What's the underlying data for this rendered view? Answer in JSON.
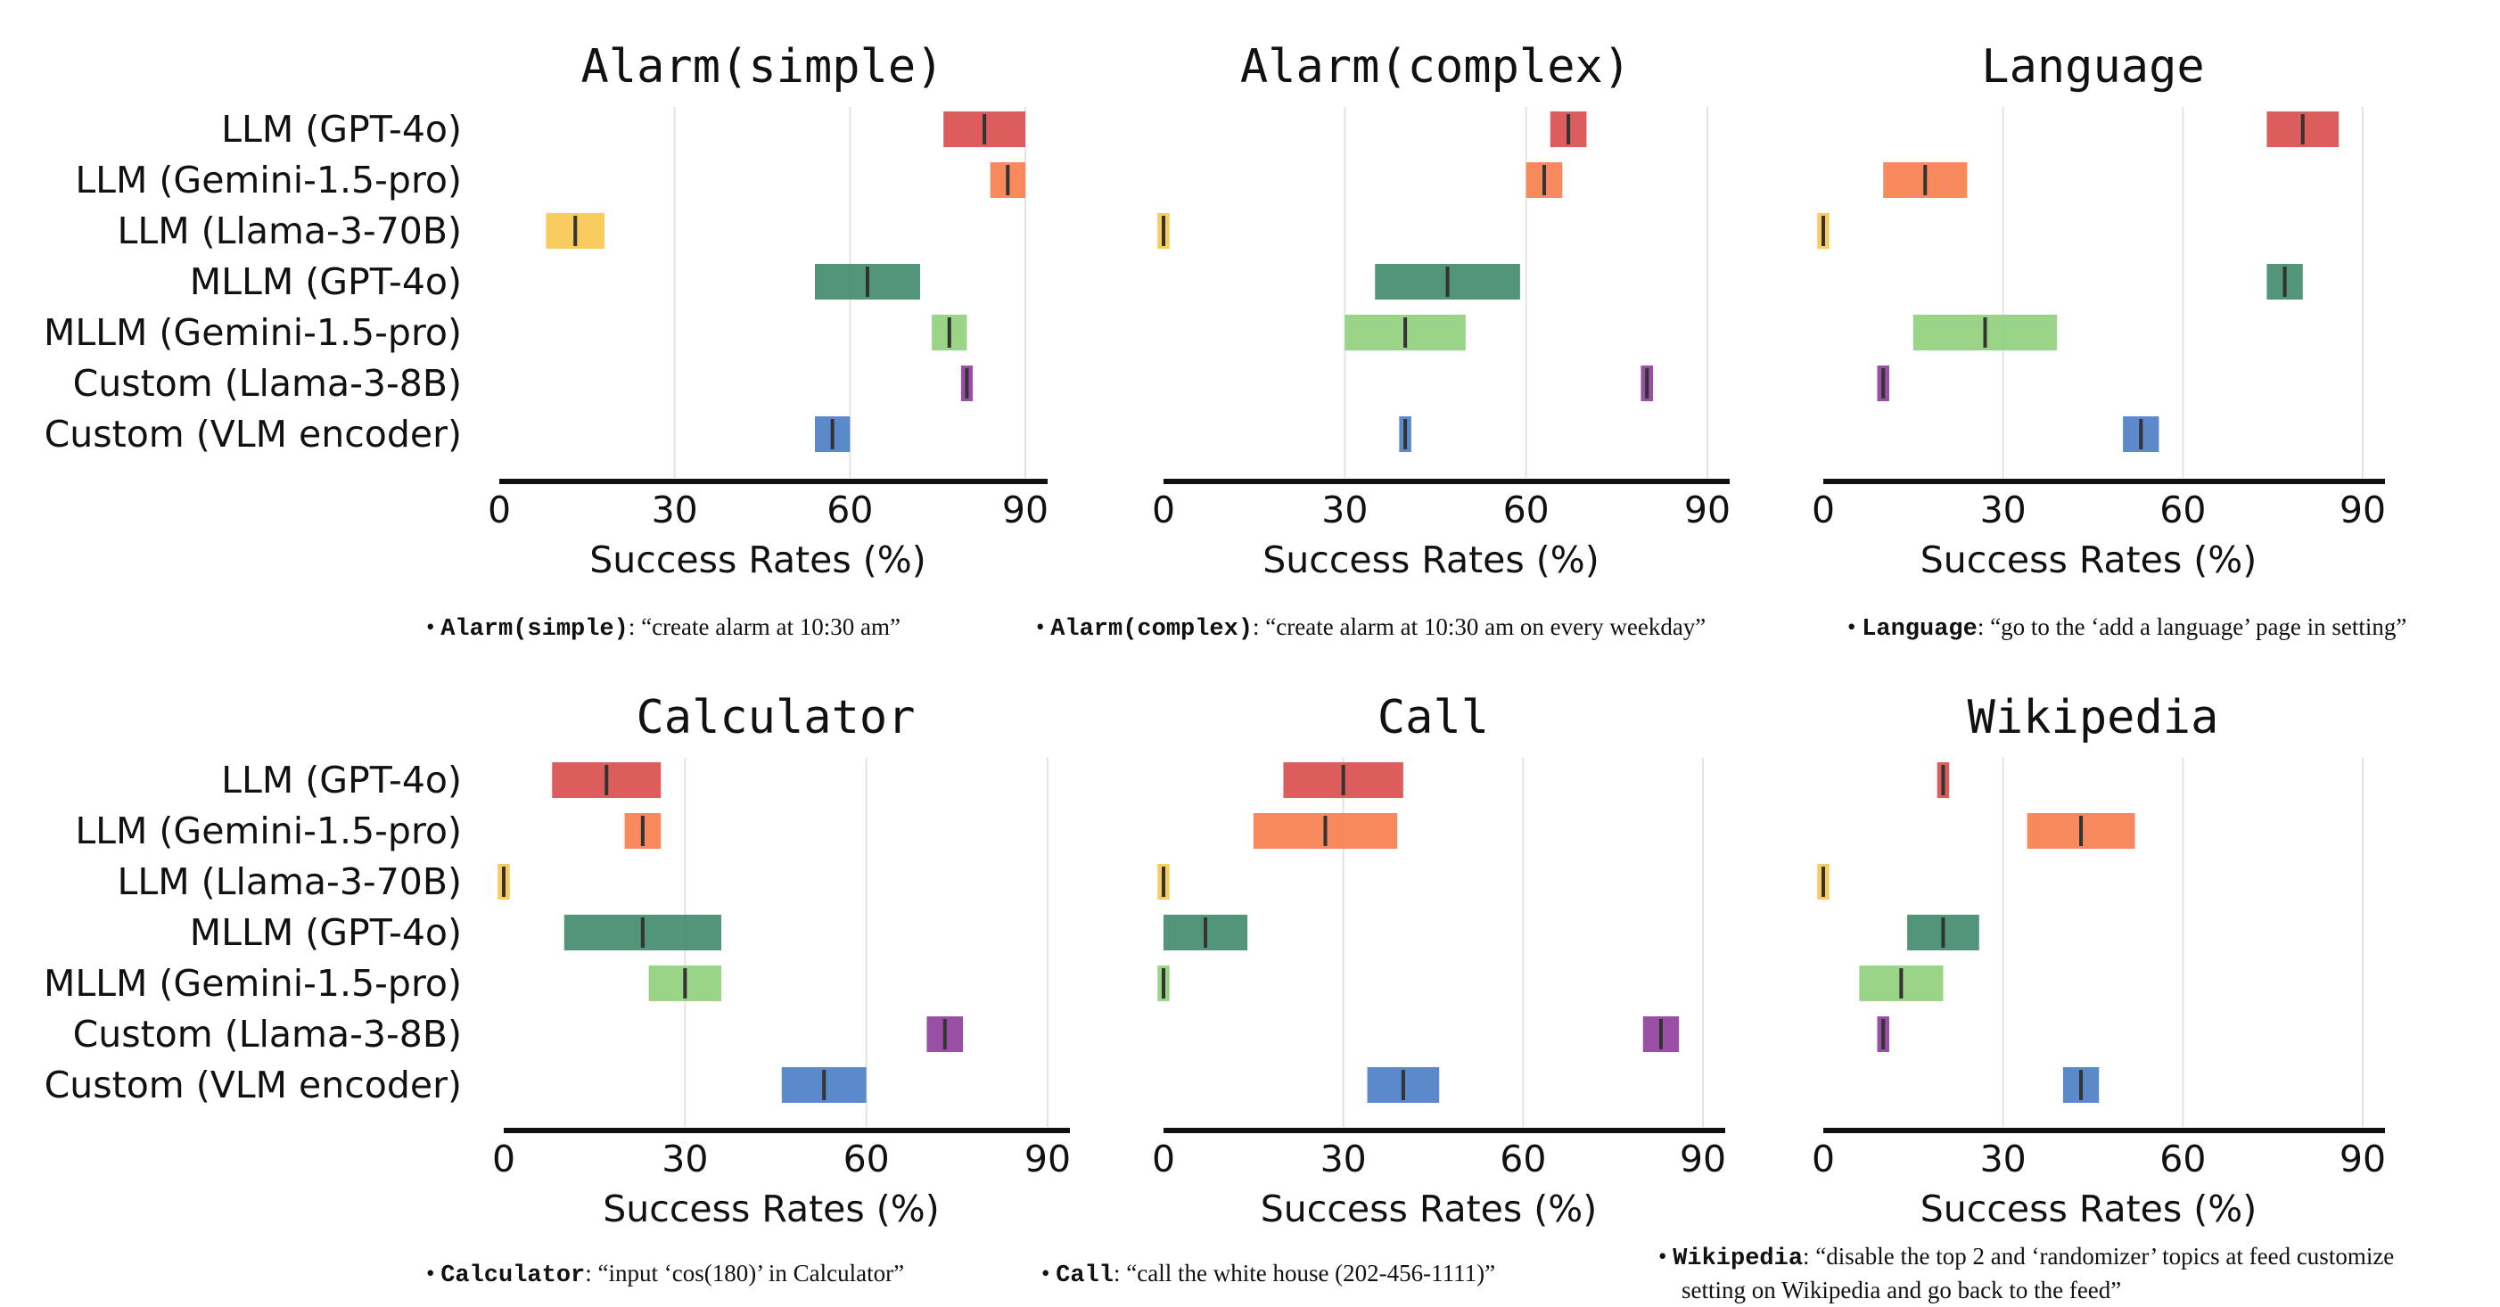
{
  "x_axis": {
    "label": "Success Rates (%)",
    "ticks": [
      0,
      30,
      60,
      90
    ],
    "range": [
      0,
      90
    ]
  },
  "chart_data": [
    {
      "type": "bar",
      "title": "Alarm(simple)",
      "xlabel": "Success Rates (%)",
      "xlim": [
        0,
        90
      ],
      "categories": [
        "LLM (GPT-4o)",
        "LLM (Gemini-1.5-pro)",
        "LLM (Llama-3-70B)",
        "MLLM (GPT-4o)",
        "MLLM (Gemini-1.5-pro)",
        "Custom (Llama-3-8B)",
        "Custom (VLM encoder)"
      ],
      "values": [
        83,
        87,
        13,
        63,
        77,
        80,
        57
      ],
      "range_low": [
        76,
        84,
        8,
        54,
        74,
        79,
        54
      ],
      "range_high": [
        90,
        90,
        18,
        72,
        80,
        81,
        60
      ]
    },
    {
      "type": "bar",
      "title": "Alarm(complex)",
      "xlabel": "Success Rates (%)",
      "xlim": [
        0,
        90
      ],
      "categories": [
        "LLM (GPT-4o)",
        "LLM (Gemini-1.5-pro)",
        "LLM (Llama-3-70B)",
        "MLLM (GPT-4o)",
        "MLLM (Gemini-1.5-pro)",
        "Custom (Llama-3-8B)",
        "Custom (VLM encoder)"
      ],
      "values": [
        67,
        63,
        0,
        47,
        40,
        80,
        40
      ],
      "range_low": [
        64,
        60,
        -1,
        35,
        30,
        79,
        39
      ],
      "range_high": [
        70,
        66,
        1,
        59,
        50,
        81,
        41
      ]
    },
    {
      "type": "bar",
      "title": "Language",
      "xlabel": "Success Rates (%)",
      "xlim": [
        0,
        90
      ],
      "categories": [
        "LLM (GPT-4o)",
        "LLM (Gemini-1.5-pro)",
        "LLM (Llama-3-70B)",
        "MLLM (GPT-4o)",
        "MLLM (Gemini-1.5-pro)",
        "Custom (Llama-3-8B)",
        "Custom (VLM encoder)"
      ],
      "values": [
        80,
        17,
        0,
        77,
        27,
        10,
        53
      ],
      "range_low": [
        74,
        10,
        -1,
        74,
        15,
        9,
        50
      ],
      "range_high": [
        86,
        24,
        1,
        80,
        39,
        11,
        56
      ]
    },
    {
      "type": "bar",
      "title": "Calculator",
      "xlabel": "Success Rates (%)",
      "xlim": [
        0,
        90
      ],
      "categories": [
        "LLM (GPT-4o)",
        "LLM (Gemini-1.5-pro)",
        "LLM (Llama-3-70B)",
        "MLLM (GPT-4o)",
        "MLLM (Gemini-1.5-pro)",
        "Custom (Llama-3-8B)",
        "Custom (VLM encoder)"
      ],
      "values": [
        17,
        23,
        0,
        23,
        30,
        73,
        53
      ],
      "range_low": [
        8,
        20,
        -1,
        10,
        24,
        70,
        46
      ],
      "range_high": [
        26,
        26,
        1,
        36,
        36,
        76,
        60
      ]
    },
    {
      "type": "bar",
      "title": "Call",
      "xlabel": "Success Rates (%)",
      "xlim": [
        0,
        90
      ],
      "categories": [
        "LLM (GPT-4o)",
        "LLM (Gemini-1.5-pro)",
        "LLM (Llama-3-70B)",
        "MLLM (GPT-4o)",
        "MLLM (Gemini-1.5-pro)",
        "Custom (Llama-3-8B)",
        "Custom (VLM encoder)"
      ],
      "values": [
        30,
        27,
        0,
        7,
        0,
        83,
        40
      ],
      "range_low": [
        20,
        15,
        -1,
        0,
        -1,
        80,
        34
      ],
      "range_high": [
        40,
        39,
        1,
        14,
        1,
        86,
        46
      ]
    },
    {
      "type": "bar",
      "title": "Wikipedia",
      "xlabel": "Success Rates (%)",
      "xlim": [
        0,
        90
      ],
      "categories": [
        "LLM (GPT-4o)",
        "LLM (Gemini-1.5-pro)",
        "LLM (Llama-3-70B)",
        "MLLM (GPT-4o)",
        "MLLM (Gemini-1.5-pro)",
        "Custom (Llama-3-8B)",
        "Custom (VLM encoder)"
      ],
      "values": [
        20,
        43,
        0,
        20,
        13,
        10,
        43
      ],
      "range_low": [
        19,
        34,
        -1,
        14,
        6,
        9,
        40
      ],
      "range_high": [
        21,
        52,
        1,
        26,
        20,
        11,
        46
      ]
    }
  ],
  "colors": [
    "#d94a4a",
    "#f77c4a",
    "#f7c64e",
    "#3f8a6c",
    "#8ecf7a",
    "#8e3c9a",
    "#4a7cc4"
  ],
  "notes": {
    "row1": [
      {
        "key": "Alarm(simple)",
        "text": ": “create alarm at 10:30 am”"
      },
      {
        "key": "Alarm(complex)",
        "text": ": “create alarm at 10:30 am on every weekday”"
      },
      {
        "key": "Language",
        "text": ": “go to the ‘add a language’ page in setting”"
      }
    ],
    "row2": [
      {
        "key": "Calculator",
        "text": ": “input ‘cos(180)’ in Calculator”"
      },
      {
        "key": "Call",
        "text": ": “call the white house (202-456-1111)”"
      },
      {
        "key": "Wikipedia",
        "text": ": “disable the top 2 and ‘randomizer’ topics at feed customize",
        "text2": "setting on Wikipedia and go back to the feed”"
      }
    ]
  }
}
